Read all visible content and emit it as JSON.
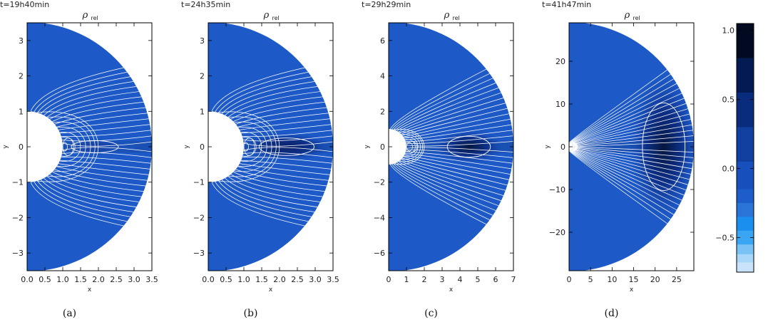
{
  "chart_data": {
    "type": "heatmap",
    "panels": [
      {
        "time": "t=19h40min",
        "title": "ρ",
        "title_sub": "rel",
        "xlabel": "x",
        "ylabel": "y",
        "xlim": [
          0,
          3.5
        ],
        "ylim": [
          -3.5,
          3.5
        ],
        "r_outer": 3.5,
        "r_inner": 1.0,
        "x_ticks": [
          "0.0",
          "0.5",
          "1.0",
          "1.5",
          "2.0",
          "2.5",
          "3.0",
          "3.5"
        ],
        "x_tick_values": [
          0,
          0.5,
          1,
          1.5,
          2,
          2.5,
          3,
          3.5
        ],
        "y_ticks": [
          "−3",
          "−2",
          "−1",
          "0",
          "1",
          "2",
          "3"
        ],
        "y_tick_values": [
          -3,
          -2,
          -1,
          0,
          1,
          2,
          3
        ],
        "blob": {
          "x": 1.9,
          "width": 1.2,
          "height": 0.35,
          "strength": 0.45
        },
        "subcaption": "(a)"
      },
      {
        "time": "t=24h35min",
        "title": "ρ",
        "title_sub": "rel",
        "xlabel": "x",
        "ylabel": "y",
        "xlim": [
          0,
          3.5
        ],
        "ylim": [
          -3.5,
          3.5
        ],
        "r_outer": 3.5,
        "r_inner": 1.0,
        "x_ticks": [
          "0.0",
          "0.5",
          "1.0",
          "1.5",
          "2.0",
          "2.5",
          "3.0",
          "3.5"
        ],
        "x_tick_values": [
          0,
          0.5,
          1,
          1.5,
          2,
          2.5,
          3,
          3.5
        ],
        "y_ticks": [
          "−3",
          "−2",
          "−1",
          "0",
          "1",
          "2",
          "3"
        ],
        "y_tick_values": [
          -3,
          -2,
          -1,
          0,
          1,
          2,
          3
        ],
        "blob": {
          "x": 2.2,
          "width": 1.4,
          "height": 0.5,
          "strength": 0.8
        },
        "subcaption": "(b)"
      },
      {
        "time": "t=29h29min",
        "title": "ρ",
        "title_sub": "rel",
        "xlabel": "x",
        "ylabel": "y",
        "xlim": [
          0,
          7
        ],
        "ylim": [
          -7,
          7
        ],
        "r_outer": 7,
        "r_inner": 1.0,
        "x_ticks": [
          "0",
          "1",
          "2",
          "3",
          "4",
          "5",
          "6",
          "7"
        ],
        "x_tick_values": [
          0,
          1,
          2,
          3,
          4,
          5,
          6,
          7
        ],
        "y_ticks": [
          "−6",
          "−4",
          "−2",
          "0",
          "2",
          "4",
          "6"
        ],
        "y_tick_values": [
          -6,
          -4,
          -2,
          0,
          2,
          4,
          6
        ],
        "blob": {
          "x": 4.5,
          "width": 2.2,
          "height": 0.6,
          "strength": 0.9
        },
        "subcaption": "(c)"
      },
      {
        "time": "t=41h47min",
        "title": "ρ",
        "title_sub": "rel",
        "xlabel": "x",
        "ylabel": "y",
        "xlim": [
          0,
          29
        ],
        "ylim": [
          -29,
          29
        ],
        "r_outer": 29,
        "r_inner": 1.0,
        "x_ticks": [
          "0",
          "5",
          "10",
          "15",
          "20",
          "25"
        ],
        "x_tick_values": [
          0,
          5,
          10,
          15,
          20,
          25
        ],
        "y_ticks": [
          "−20",
          "−10",
          "0",
          "10",
          "20"
        ],
        "y_tick_values": [
          -20,
          -10,
          0,
          10,
          20
        ],
        "blob": {
          "x": 22,
          "width": 9,
          "height": 2.5,
          "strength": 1.0
        },
        "subcaption": "(d)"
      }
    ],
    "colorbar": {
      "range": [
        -0.75,
        1.05
      ],
      "ticks": [
        "1.0",
        "0.5",
        "0.0",
        "−0.5"
      ],
      "tick_values": [
        1.0,
        0.5,
        0.0,
        -0.5
      ]
    }
  }
}
